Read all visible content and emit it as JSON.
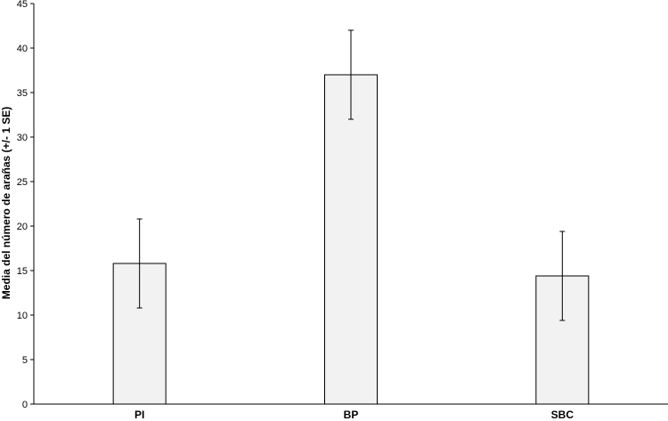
{
  "chart_data": {
    "type": "bar",
    "categories": [
      "PI",
      "BP",
      "SBC"
    ],
    "values": [
      15.8,
      37.0,
      14.4
    ],
    "error": [
      5.0,
      5.0,
      5.0
    ],
    "title": "",
    "xlabel": "",
    "ylabel": "Media del número de arañas (+/- 1  SE)",
    "ylim": [
      0,
      45
    ],
    "yticks": [
      0,
      5,
      10,
      15,
      20,
      25,
      30,
      35,
      40,
      45
    ],
    "grid": false,
    "legend": "none",
    "colors": {
      "bar_fill": "#f2f2f2",
      "bar_stroke": "#000000",
      "axis": "#000000"
    }
  }
}
